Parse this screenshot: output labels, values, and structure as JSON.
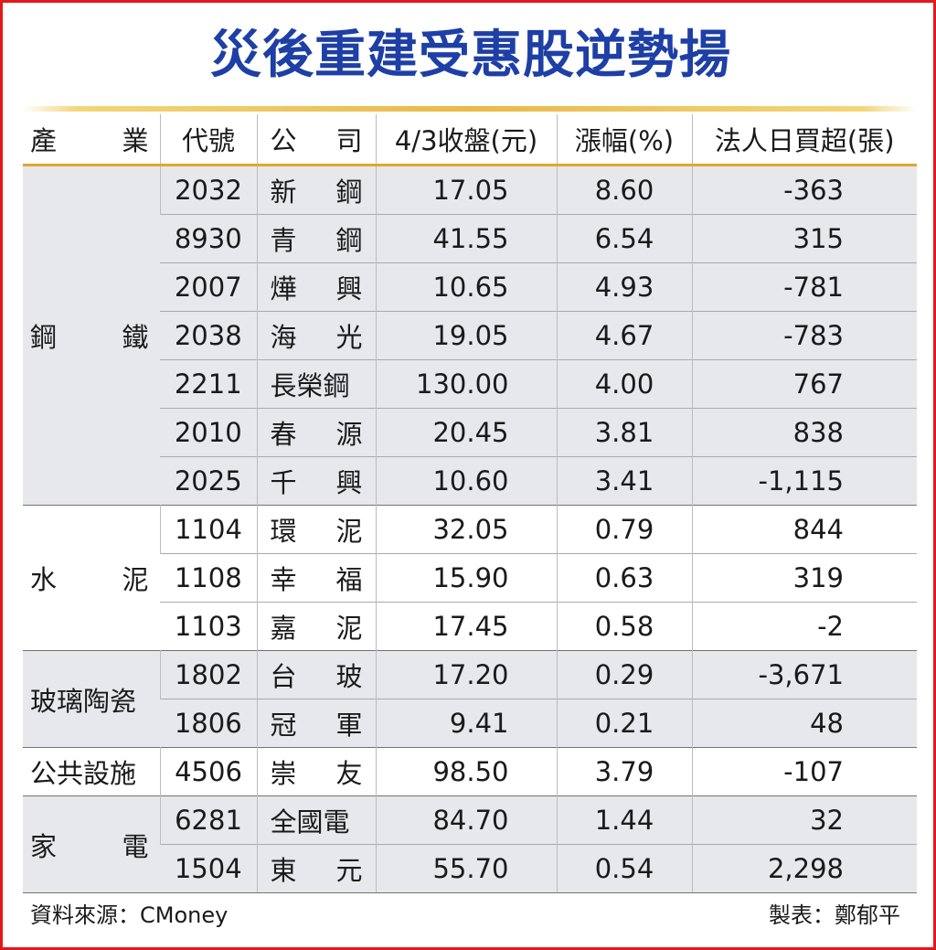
{
  "title": "災後重建受惠股逆勢揚",
  "headers": {
    "industry": [
      "產",
      "業"
    ],
    "code": "代號",
    "company": [
      "公",
      "司"
    ],
    "close": "4/3收盤(元)",
    "change": "漲幅(%)",
    "net_buy": "法人日買超(張)"
  },
  "groups": [
    {
      "industry": [
        "鋼",
        "鐵"
      ],
      "rows": [
        {
          "code": "2032",
          "company": [
            "新",
            "鋼"
          ],
          "close": "17.05",
          "change": "8.60",
          "net_buy": "-363"
        },
        {
          "code": "8930",
          "company": [
            "青",
            "鋼"
          ],
          "close": "41.55",
          "change": "6.54",
          "net_buy": "315"
        },
        {
          "code": "2007",
          "company": [
            "燁",
            "興"
          ],
          "close": "10.65",
          "change": "4.93",
          "net_buy": "-781"
        },
        {
          "code": "2038",
          "company": [
            "海",
            "光"
          ],
          "close": "19.05",
          "change": "4.67",
          "net_buy": "-783"
        },
        {
          "code": "2211",
          "company": [
            "長榮鋼"
          ],
          "close": "130.00",
          "change": "4.00",
          "net_buy": "767"
        },
        {
          "code": "2010",
          "company": [
            "春",
            "源"
          ],
          "close": "20.45",
          "change": "3.81",
          "net_buy": "838"
        },
        {
          "code": "2025",
          "company": [
            "千",
            "興"
          ],
          "close": "10.60",
          "change": "3.41",
          "net_buy": "-1,115"
        }
      ]
    },
    {
      "industry": [
        "水",
        "泥"
      ],
      "rows": [
        {
          "code": "1104",
          "company": [
            "環",
            "泥"
          ],
          "close": "32.05",
          "change": "0.79",
          "net_buy": "844"
        },
        {
          "code": "1108",
          "company": [
            "幸",
            "福"
          ],
          "close": "15.90",
          "change": "0.63",
          "net_buy": "319"
        },
        {
          "code": "1103",
          "company": [
            "嘉",
            "泥"
          ],
          "close": "17.45",
          "change": "0.58",
          "net_buy": "-2"
        }
      ]
    },
    {
      "industry": [
        "玻璃陶瓷"
      ],
      "rows": [
        {
          "code": "1802",
          "company": [
            "台",
            "玻"
          ],
          "close": "17.20",
          "change": "0.29",
          "net_buy": "-3,671"
        },
        {
          "code": "1806",
          "company": [
            "冠",
            "軍"
          ],
          "close": "9.41",
          "change": "0.21",
          "net_buy": "48"
        }
      ]
    },
    {
      "industry": [
        "公共設施"
      ],
      "rows": [
        {
          "code": "4506",
          "company": [
            "崇",
            "友"
          ],
          "close": "98.50",
          "change": "3.79",
          "net_buy": "-107"
        }
      ]
    },
    {
      "industry": [
        "家",
        "電"
      ],
      "rows": [
        {
          "code": "6281",
          "company": [
            "全國電"
          ],
          "close": "84.70",
          "change": "1.44",
          "net_buy": "32"
        },
        {
          "code": "1504",
          "company": [
            "東",
            "元"
          ],
          "close": "55.70",
          "change": "0.54",
          "net_buy": "2,298"
        }
      ]
    }
  ],
  "footer": {
    "source": "資料來源：CMoney",
    "maker": "製表：鄭郁平"
  }
}
